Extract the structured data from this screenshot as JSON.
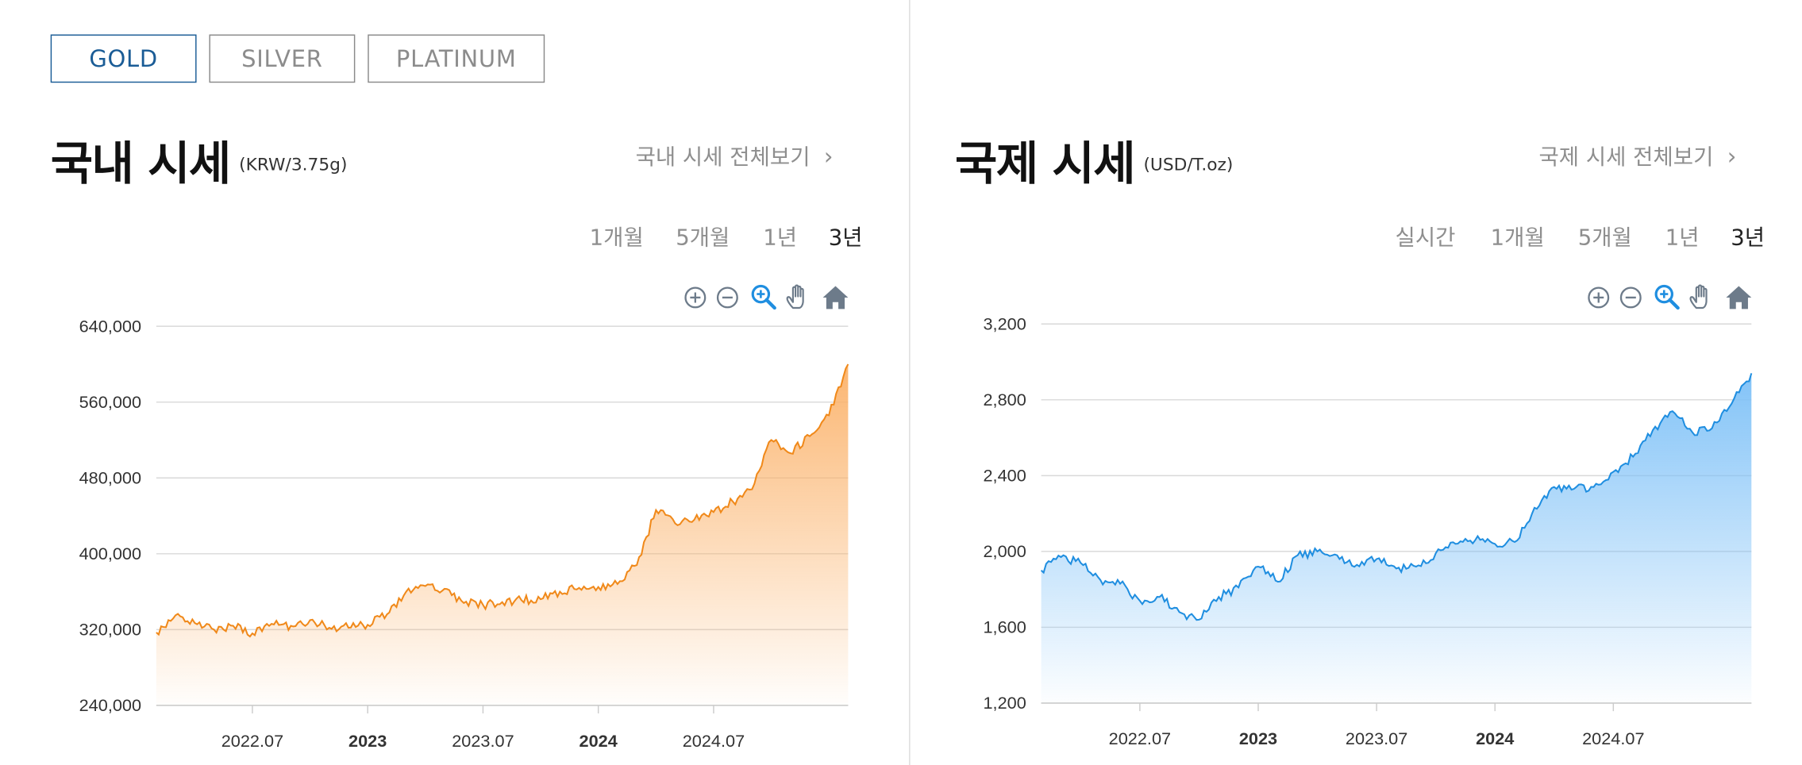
{
  "tabs": [
    {
      "label": "GOLD",
      "active": true
    },
    {
      "label": "SILVER",
      "active": false
    },
    {
      "label": "PLATINUM",
      "active": false
    }
  ],
  "domestic": {
    "title": "국내 시세",
    "unit": "(KRW/3.75g)",
    "view_all": "국내 시세 전체보기",
    "periods": [
      {
        "label": "1개월",
        "active": false
      },
      {
        "label": "5개월",
        "active": false
      },
      {
        "label": "1년",
        "active": false
      },
      {
        "label": "3년",
        "active": true
      }
    ]
  },
  "international": {
    "title": "국제 시세",
    "unit": "(USD/T.oz)",
    "view_all": "국제 시세 전체보기",
    "periods": [
      {
        "label": "실시간",
        "active": false
      },
      {
        "label": "1개월",
        "active": false
      },
      {
        "label": "5개월",
        "active": false
      },
      {
        "label": "1년",
        "active": false
      },
      {
        "label": "3년",
        "active": true
      }
    ]
  },
  "toolbar_icons": [
    "zoom-in-icon",
    "zoom-out-icon",
    "zoom-select-icon",
    "pan-hand-icon",
    "reset-home-icon"
  ],
  "colors": {
    "accent_tab": "#1a5c96",
    "gold_line": "#f0891a",
    "gold_fill": "#fbb26a",
    "intl_line": "#1f8ee0",
    "intl_fill": "#7cc0f7",
    "zoom_select": "#1f8ee0"
  },
  "chart_data": [
    {
      "type": "area",
      "title": "국내 시세",
      "xlabel": "",
      "ylabel": "",
      "ylim": [
        240000,
        640000
      ],
      "yticks": [
        240000,
        320000,
        400000,
        480000,
        560000,
        640000
      ],
      "ytick_labels": [
        "240,000",
        "320,000",
        "400,000",
        "480,000",
        "560,000",
        "640,000"
      ],
      "xlim": [
        "2022-02",
        "2025-02"
      ],
      "xticks": [
        "2022-07",
        "2023-01",
        "2023-07",
        "2024-01",
        "2024-07"
      ],
      "xtick_labels": [
        "2022.07",
        "2023",
        "2023.07",
        "2024",
        "2024.07"
      ],
      "xtick_bold": [
        false,
        true,
        false,
        true,
        false
      ],
      "grid": true,
      "legend": "none",
      "series": [
        {
          "x": [
            "2022-02",
            "2022-03",
            "2022-04",
            "2022-05",
            "2022-06",
            "2022-07",
            "2022-08",
            "2022-09",
            "2022-10",
            "2022-11",
            "2022-12",
            "2023-01",
            "2023-02",
            "2023-03",
            "2023-04",
            "2023-05",
            "2023-06",
            "2023-07",
            "2023-08",
            "2023-09",
            "2023-10",
            "2023-11",
            "2023-12",
            "2024-01",
            "2024-02",
            "2024-03",
            "2024-04",
            "2024-05",
            "2024-06",
            "2024-07",
            "2024-08",
            "2024-09",
            "2024-10",
            "2024-11",
            "2024-12",
            "2025-01",
            "2025-02"
          ],
          "values": [
            317000,
            335000,
            327000,
            320000,
            324000,
            316000,
            326000,
            324000,
            330000,
            322000,
            322000,
            325000,
            336000,
            360000,
            366000,
            363000,
            348000,
            346000,
            349000,
            351000,
            352000,
            360000,
            364000,
            365000,
            368000,
            388000,
            446000,
            432000,
            436000,
            444000,
            455000,
            468000,
            520000,
            506000,
            524000,
            546000,
            600000
          ]
        }
      ]
    },
    {
      "type": "area",
      "title": "국제 시세",
      "xlabel": "",
      "ylabel": "",
      "ylim": [
        1200,
        3200
      ],
      "yticks": [
        1200,
        1600,
        2000,
        2400,
        2800,
        3200
      ],
      "ytick_labels": [
        "1,200",
        "1,600",
        "2,000",
        "2,400",
        "2,800",
        "3,200"
      ],
      "xlim": [
        "2022-02",
        "2025-02"
      ],
      "xticks": [
        "2022-07",
        "2023-01",
        "2023-07",
        "2024-01",
        "2024-07"
      ],
      "xtick_labels": [
        "2022.07",
        "2023",
        "2023.07",
        "2024",
        "2024.07"
      ],
      "xtick_bold": [
        false,
        true,
        false,
        true,
        false
      ],
      "grid": true,
      "legend": "none",
      "series": [
        {
          "x": [
            "2022-02",
            "2022-03",
            "2022-04",
            "2022-05",
            "2022-06",
            "2022-07",
            "2022-08",
            "2022-09",
            "2022-10",
            "2022-11",
            "2022-12",
            "2023-01",
            "2023-02",
            "2023-03",
            "2023-04",
            "2023-05",
            "2023-06",
            "2023-07",
            "2023-08",
            "2023-09",
            "2023-10",
            "2023-11",
            "2023-12",
            "2024-01",
            "2024-02",
            "2024-03",
            "2024-04",
            "2024-05",
            "2024-06",
            "2024-07",
            "2024-08",
            "2024-09",
            "2024-10",
            "2024-11",
            "2024-12",
            "2025-01",
            "2025-02"
          ],
          "values": [
            1900,
            1970,
            1940,
            1850,
            1830,
            1740,
            1760,
            1680,
            1640,
            1760,
            1810,
            1920,
            1840,
            1980,
            2000,
            1980,
            1930,
            1960,
            1910,
            1920,
            1990,
            2040,
            2060,
            2040,
            2050,
            2230,
            2340,
            2330,
            2340,
            2420,
            2500,
            2640,
            2740,
            2630,
            2650,
            2780,
            2940
          ]
        }
      ]
    }
  ]
}
